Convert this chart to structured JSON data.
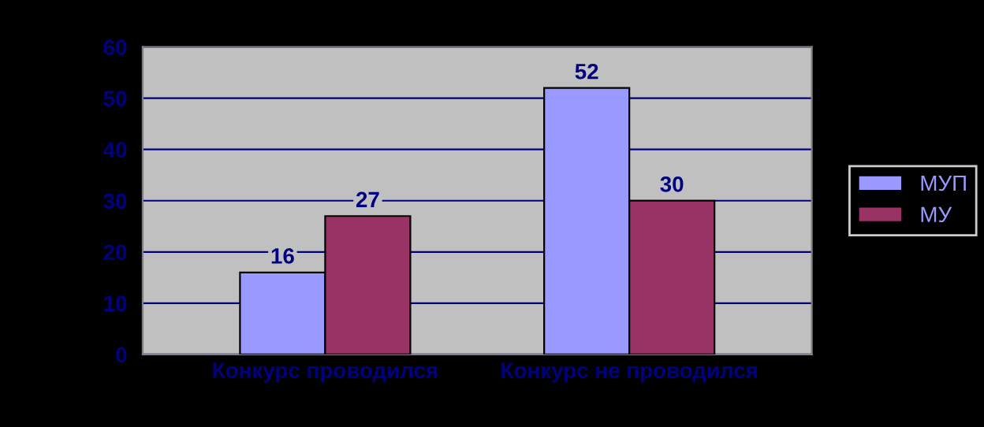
{
  "chart_data": {
    "type": "bar",
    "categories": [
      "Конкурс проводился",
      "Конкурс не проводился"
    ],
    "series": [
      {
        "name": "МУП",
        "color": "#9999ff",
        "values": [
          16,
          52
        ]
      },
      {
        "name": "МУ",
        "color": "#993366",
        "values": [
          27,
          30
        ]
      }
    ],
    "ylim": [
      0,
      60
    ],
    "yticks": [
      0,
      10,
      20,
      30,
      40,
      50,
      60
    ],
    "grid": "y",
    "legend": "right",
    "data_labels": true
  }
}
